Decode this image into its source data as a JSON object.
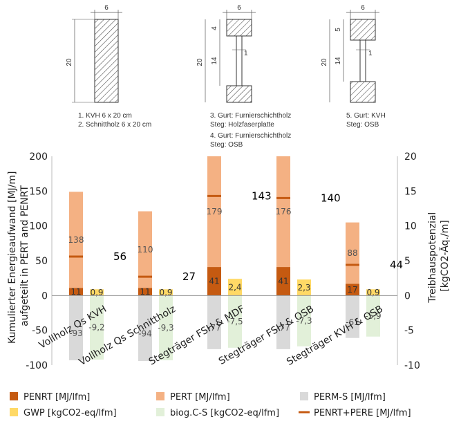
{
  "colors": {
    "penrt": "#c55a11",
    "pert": "#f4b183",
    "perm": "#d9d9d9",
    "gwp": "#ffd966",
    "biog": "#e2f0d9",
    "line": "#c55a11"
  },
  "diagrams": {
    "d1": {
      "width_label": "6",
      "height_label": "20",
      "captions": [
        "1. KVH 6 x 20 cm",
        "2. Schnittholz 6 x 20 cm"
      ]
    },
    "d2": {
      "width_label": "6",
      "height_label": "20",
      "flange_label": "4",
      "web_label": "14",
      "web_thickness_label": "1",
      "captions": [
        "3. Gurt: Furnierschichtholz",
        "Steg: Holzfaserplatte",
        "4. Gurt: Furnierschichtholz",
        "Steg: OSB"
      ]
    },
    "d3": {
      "width_label": "6",
      "height_label": "20",
      "flange_label": "5",
      "web_label": "14",
      "web_thickness_label": "1",
      "captions": [
        "5. Gurt: KVH",
        "Steg: OSB"
      ]
    }
  },
  "chart_data": {
    "type": "bar",
    "categories": [
      "Vollholz Qs KVH",
      "Vollholz Qs Schnittholz",
      "Stegträger FSH & MDF",
      "Stegträger FSH & OSB",
      "Stegträger KVH & OSB"
    ],
    "ylabel": "Kumulierter Energieaufwand [MJ/m]\naufgeteilt in PERT and PENRT",
    "y2label": "Treibhauspotenzial\n[kgCO2-Äq./m]",
    "ylim": [
      -100,
      200
    ],
    "y_ticks": [
      "200",
      "150",
      "100",
      "50",
      "0",
      "-50",
      "-100"
    ],
    "y2lim": [
      -10,
      20
    ],
    "y2_ticks": [
      "20",
      "15",
      "10",
      "5",
      "0",
      "-5",
      "-10"
    ],
    "series": [
      {
        "name": "PENRT [MJ/lfm]",
        "axis": "left",
        "values": [
          11,
          11,
          41,
          41,
          17
        ]
      },
      {
        "name": "PERT [MJ/lfm]",
        "axis": "left",
        "values": [
          138,
          110,
          179,
          176,
          88
        ]
      },
      {
        "name": "PERM-S [MJ/lfm]",
        "axis": "left",
        "values": [
          -93,
          -94,
          -77,
          -77,
          -61
        ]
      },
      {
        "name": "GWP [kgCO2-eq/lfm]",
        "axis": "right",
        "values": [
          0.9,
          0.9,
          2.4,
          2.3,
          0.9
        ]
      },
      {
        "name": "biog.C-S  [kgCO2-eq/lfm]",
        "axis": "right",
        "values": [
          -9.2,
          -9.3,
          -7.5,
          -7.3,
          -5.9
        ]
      },
      {
        "name": "PENRT+PERE [MJ/lfm]",
        "axis": "left",
        "values": [
          56,
          27,
          143,
          140,
          44
        ]
      }
    ],
    "data_labels": {
      "penrt": [
        "11",
        "11",
        "41",
        "41",
        "17"
      ],
      "pert": [
        "138",
        "110",
        "179",
        "176",
        "88"
      ],
      "perm": [
        "-93",
        "-94",
        "-77",
        "-77",
        "-61"
      ],
      "gwp": [
        "0,9",
        "0,9",
        "2,4",
        "2,3",
        "0,9"
      ],
      "biog": [
        "-9,2",
        "-9,3",
        "-7,5",
        "-7,3",
        "-5,9"
      ],
      "sum": [
        "56",
        "27",
        "143",
        "140",
        "44"
      ]
    },
    "legend_position": "bottom"
  }
}
